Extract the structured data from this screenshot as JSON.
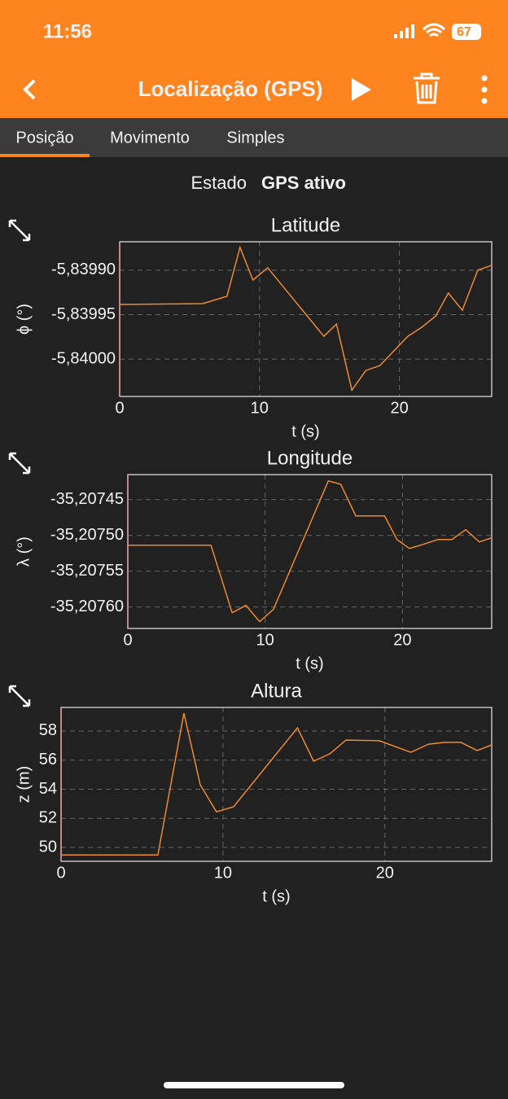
{
  "status_bar": {
    "time": "11:56",
    "battery": "67"
  },
  "toolbar": {
    "title": "Localização (GPS)"
  },
  "tabs": [
    "Posição",
    "Movimento",
    "Simples"
  ],
  "status": {
    "label": "Estado",
    "value": "GPS ativo"
  },
  "chart_data": [
    {
      "type": "line",
      "title": "Latitude",
      "xlabel": "t (s)",
      "ylabel": "ϕ (°)",
      "color": "#ee8a2e",
      "grid": true,
      "x": [
        0,
        5.93,
        7.67,
        8.6,
        9.53,
        10.58,
        14.6,
        15.5,
        16.6,
        17.6,
        18.6,
        20.6,
        21.6,
        22.6,
        23.5,
        24.5,
        25.6,
        26.6
      ],
      "values": [
        -5.8399385,
        -5.8399376,
        -5.8399294,
        -5.8398743,
        -5.839911,
        -5.8398972,
        -5.8399743,
        -5.8399606,
        -5.8400349,
        -5.8400128,
        -5.8400073,
        -5.8399743,
        -5.8399642,
        -5.8399514,
        -5.8399257,
        -5.839945,
        -5.8399,
        -5.8398945
      ],
      "xlim": [
        0,
        26.6
      ],
      "ylim": [
        -5.840042,
        -5.839868
      ],
      "xticks": [
        0,
        10,
        20
      ],
      "yticks": [
        {
          "value": -5.8399,
          "label": "-5,83990"
        },
        {
          "value": -5.83995,
          "label": "-5,83995"
        },
        {
          "value": -5.84,
          "label": "-5,84000"
        }
      ]
    },
    {
      "type": "line",
      "title": "Longitude",
      "xlabel": "t (s)",
      "ylabel": "λ (°)",
      "color": "#ee8a2e",
      "grid": true,
      "x": [
        0,
        6.05,
        7.6,
        8.6,
        9.6,
        10.6,
        14.6,
        15.5,
        16.6,
        18.7,
        19.6,
        20.5,
        21.5,
        22.6,
        23.6,
        24.6,
        25.6,
        26.5
      ],
      "values": [
        -35.2075136,
        -35.2075136,
        -35.207608,
        -35.2075977,
        -35.2076205,
        -35.2076034,
        -35.2074239,
        -35.2074284,
        -35.2074727,
        -35.2074727,
        -35.2075057,
        -35.2075182,
        -35.2075125,
        -35.2075057,
        -35.2075057,
        -35.207492,
        -35.2075091,
        -35.2075034
      ],
      "xlim": [
        0,
        26.5
      ],
      "ylim": [
        -35.20763,
        -35.207415
      ],
      "xticks": [
        0,
        10,
        20
      ],
      "yticks": [
        {
          "value": -35.20745,
          "label": "-35,20745"
        },
        {
          "value": -35.2075,
          "label": "-35,20750"
        },
        {
          "value": -35.20755,
          "label": "-35,20755"
        },
        {
          "value": -35.2076,
          "label": "-35,20760"
        }
      ]
    },
    {
      "type": "line",
      "title": "Altura",
      "xlabel": "t (s)",
      "ylabel": "z (m)",
      "color": "#ee8a2e",
      "grid": true,
      "x": [
        0,
        5.98,
        7.59,
        8.6,
        9.6,
        10.65,
        14.6,
        15.6,
        16.6,
        17.6,
        19.65,
        21.6,
        22.7,
        23.7,
        24.7,
        25.7,
        26.6
      ],
      "values": [
        49.48,
        49.48,
        59.23,
        54.3,
        52.45,
        52.79,
        58.22,
        55.93,
        56.43,
        57.38,
        57.33,
        56.54,
        57.1,
        57.22,
        57.22,
        56.66,
        57.05
      ],
      "xlim": [
        0,
        26.6
      ],
      "ylim": [
        49.05,
        59.62
      ],
      "xticks": [
        0,
        10,
        20
      ],
      "yticks": [
        58,
        56,
        54,
        52,
        50
      ]
    }
  ]
}
